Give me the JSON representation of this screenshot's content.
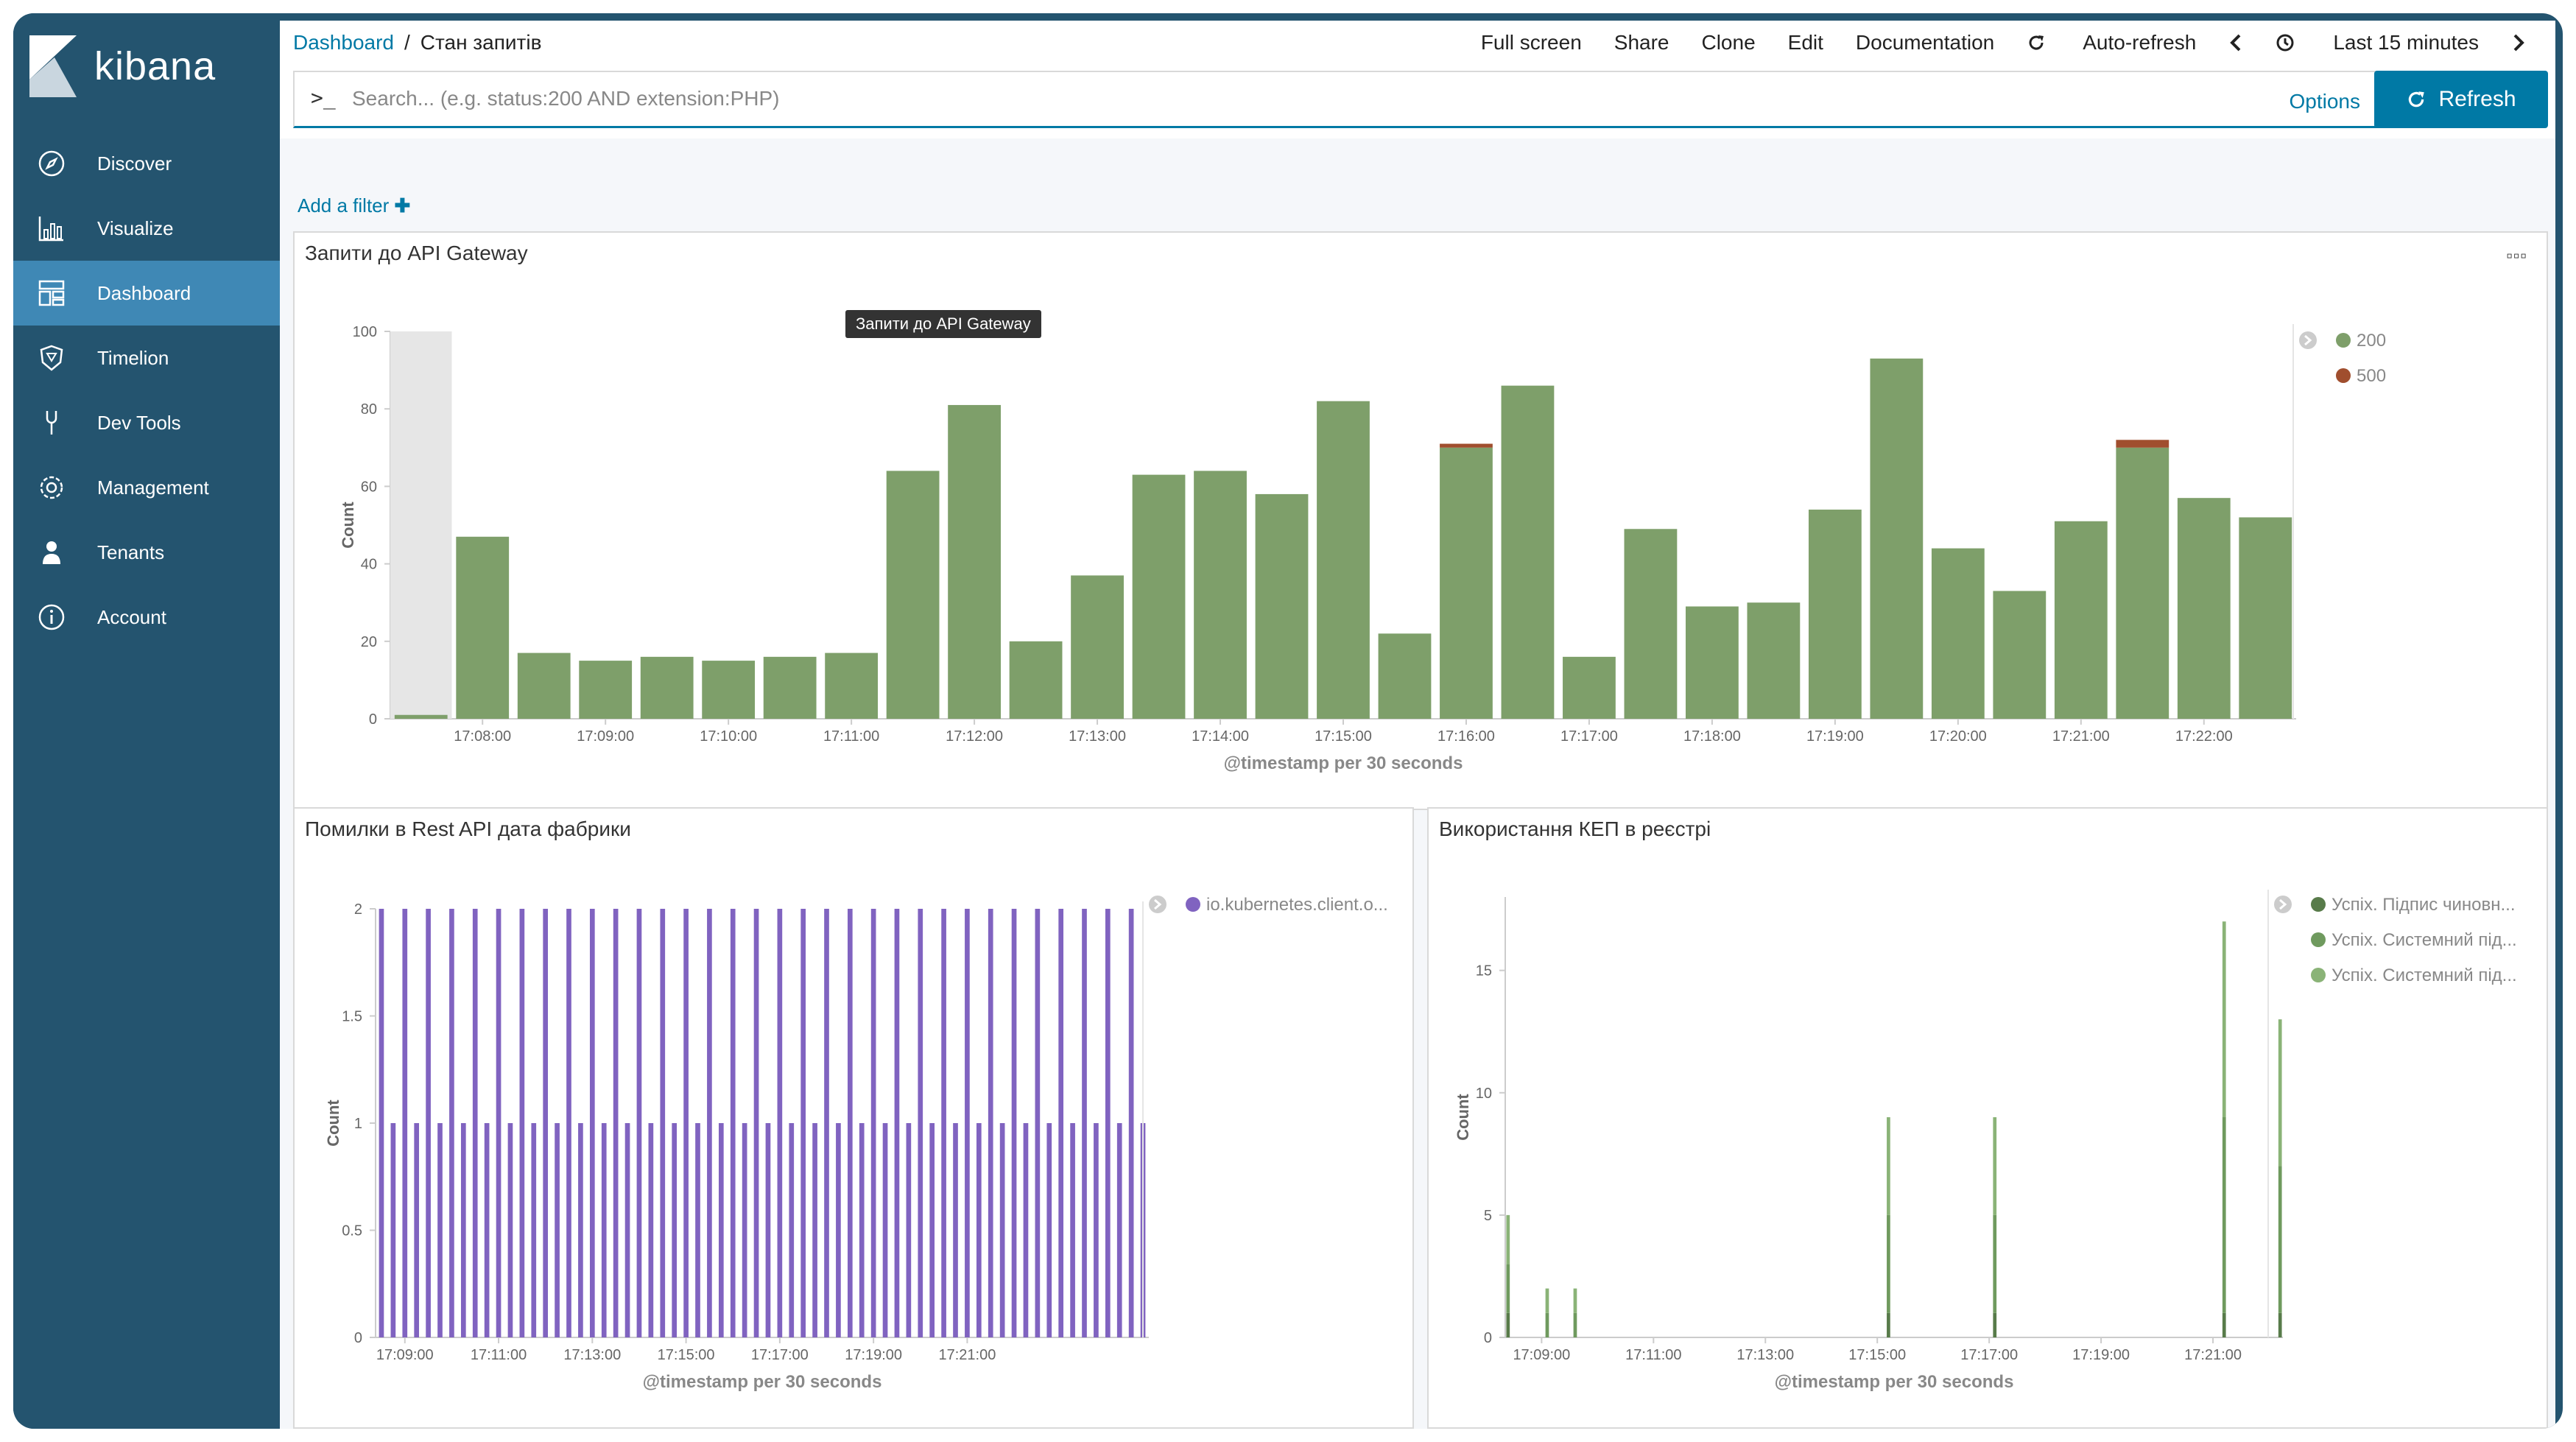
{
  "app": {
    "name": "kibana"
  },
  "nav": [
    {
      "label": "Discover",
      "icon": "compass-icon"
    },
    {
      "label": "Visualize",
      "icon": "bar-chart-icon"
    },
    {
      "label": "Dashboard",
      "icon": "dashboard-icon",
      "active": true
    },
    {
      "label": "Timelion",
      "icon": "shield-icon"
    },
    {
      "label": "Dev Tools",
      "icon": "wrench-icon"
    },
    {
      "label": "Management",
      "icon": "gear-icon"
    },
    {
      "label": "Tenants",
      "icon": "user-icon"
    },
    {
      "label": "Account",
      "icon": "info-icon"
    }
  ],
  "breadcrumb": {
    "root": "Dashboard",
    "separator": "/",
    "current": "Стан запитів"
  },
  "toolbar": {
    "full_screen": "Full screen",
    "share": "Share",
    "clone": "Clone",
    "edit": "Edit",
    "documentation": "Documentation",
    "auto_refresh": "Auto-refresh",
    "time_range": "Last 15 minutes"
  },
  "search": {
    "prompt": ">_",
    "placeholder": "Search... (e.g. status:200 AND extension:PHP)",
    "options": "Options"
  },
  "refresh_label": "Refresh",
  "filters": {
    "add": "Add a filter"
  },
  "colors": {
    "accent": "#0079a5",
    "sidebar": "#24546f",
    "active": "#3f88b5",
    "green": "#7e9f6a",
    "brown": "#a04e2e",
    "purple": "#8063c0"
  },
  "panels": {
    "p1": {
      "title": "Запити до API Gateway",
      "tooltip": "Запити до API Gateway",
      "xlabel": "@timestamp per 30 seconds",
      "ylabel": "Count",
      "legend": [
        "200",
        "500"
      ]
    },
    "p2": {
      "title": "Помилки в Rest API дата фабрики",
      "xlabel": "@timestamp per 30 seconds",
      "ylabel": "Count",
      "legend": [
        "io.kubernetes.client.o..."
      ]
    },
    "p3": {
      "title": "Використання КЕП в реєстрі",
      "xlabel": "@timestamp per 30 seconds",
      "ylabel": "Count",
      "legend": [
        "Успіх. Підпис чиновн...",
        "Успіх. Системний під...",
        "Успіх. Системний під..."
      ]
    }
  },
  "chart_data": [
    {
      "type": "bar",
      "title": "Запити до API Gateway",
      "xlabel": "@timestamp per 30 seconds",
      "ylabel": "Count",
      "ylim": [
        0,
        100
      ],
      "yticks": [
        0,
        20,
        40,
        60,
        80,
        100
      ],
      "xticks": [
        "17:08:00",
        "17:09:00",
        "17:10:00",
        "17:11:00",
        "17:12:00",
        "17:13:00",
        "17:14:00",
        "17:15:00",
        "17:16:00",
        "17:17:00",
        "17:18:00",
        "17:19:00",
        "17:20:00",
        "17:21:00",
        "17:22:00"
      ],
      "legend_position": "right",
      "series": [
        {
          "name": "200",
          "color": "#7e9f6a",
          "values": [
            1,
            47,
            17,
            15,
            16,
            15,
            16,
            17,
            64,
            81,
            20,
            37,
            63,
            64,
            58,
            82,
            22,
            70,
            86,
            16,
            49,
            29,
            30,
            54,
            93,
            44,
            33,
            51,
            70,
            57,
            52
          ]
        },
        {
          "name": "500",
          "color": "#a04e2e",
          "values": [
            0,
            0,
            0,
            0,
            0,
            0,
            0,
            0,
            0,
            0,
            0,
            0,
            0,
            0,
            0,
            0,
            0,
            1,
            0,
            0,
            0,
            0,
            0,
            0,
            0,
            0,
            0,
            0,
            2,
            0,
            0
          ]
        }
      ]
    },
    {
      "type": "bar",
      "title": "Помилки в Rest API дата фабрики",
      "xlabel": "@timestamp per 30 seconds",
      "ylabel": "Count",
      "ylim": [
        0,
        2
      ],
      "yticks": [
        0,
        0.5,
        1,
        1.5,
        2
      ],
      "xticks": [
        "17:09:00",
        "17:11:00",
        "17:13:00",
        "17:15:00",
        "17:17:00",
        "17:19:00",
        "17:21:00"
      ],
      "legend_position": "right",
      "series": [
        {
          "name": "io.kubernetes.client.o...",
          "color": "#8063c0",
          "values": [
            2,
            1,
            2,
            1,
            2,
            1,
            2,
            1,
            2,
            1,
            2,
            1,
            2,
            1,
            2,
            1,
            2,
            1,
            2,
            1,
            2,
            1,
            2,
            1,
            2,
            1,
            2,
            1,
            2,
            1,
            2,
            1,
            2,
            1,
            2,
            1,
            2,
            1,
            2,
            1,
            2,
            1,
            2,
            1,
            2,
            1,
            2,
            1,
            2,
            1,
            2,
            1,
            2,
            1,
            2,
            1,
            2,
            1,
            2,
            1,
            2,
            1,
            2,
            1,
            2,
            1
          ]
        }
      ]
    },
    {
      "type": "bar",
      "title": "Використання КЕП в реєстрі",
      "xlabel": "@timestamp per 30 seconds",
      "ylabel": "Count",
      "ylim": [
        0,
        18
      ],
      "yticks": [
        0,
        5,
        10,
        15
      ],
      "xticks": [
        "17:09:00",
        "17:11:00",
        "17:13:00",
        "17:15:00",
        "17:17:00",
        "17:19:00",
        "17:21:00"
      ],
      "legend_position": "right",
      "stacked": true,
      "series": [
        {
          "name": "Успіх. Підпис чиновн...",
          "color": "#587b4a",
          "values": [
            1,
            0,
            0,
            0,
            0,
            0,
            0,
            0,
            0,
            0,
            0,
            0,
            0,
            0,
            0,
            0,
            0,
            0,
            0,
            0,
            0,
            0,
            0,
            0,
            0,
            0,
            0,
            0,
            0,
            0,
            0,
            0,
            0,
            0,
            0,
            0,
            0,
            0,
            0,
            0,
            0,
            0,
            0,
            0,
            0,
            0,
            0,
            0,
            0,
            0,
            0,
            0,
            0,
            0,
            0,
            0,
            0,
            0,
            0,
            0,
            0,
            0,
            0,
            0,
            0,
            0,
            0,
            0,
            1,
            0,
            0,
            0,
            0,
            0,
            0,
            0,
            0,
            0,
            0,
            0,
            0,
            0,
            0,
            0,
            0,
            0,
            0,
            1,
            0,
            0,
            0,
            0,
            0,
            0,
            0,
            0,
            0,
            0,
            0,
            0,
            0,
            0,
            0,
            0,
            0,
            0,
            0,
            0,
            0,
            0,
            0,
            0,
            0,
            0,
            0,
            0,
            0,
            0,
            0,
            0,
            0,
            0,
            0,
            0,
            0,
            0,
            0,
            0,
            1,
            0,
            0,
            0,
            0,
            0,
            0,
            0,
            0,
            0,
            1
          ]
        },
        {
          "name": "Успіх. Системний під...",
          "color": "#6f9a5e",
          "values": [
            2,
            0,
            0,
            0,
            0,
            0,
            0,
            1,
            0,
            0,
            0,
            0,
            1,
            0,
            0,
            0,
            0,
            0,
            0,
            0,
            0,
            0,
            0,
            0,
            0,
            0,
            0,
            0,
            0,
            0,
            0,
            0,
            0,
            0,
            0,
            0,
            0,
            0,
            0,
            0,
            0,
            0,
            0,
            0,
            0,
            0,
            0,
            0,
            0,
            0,
            0,
            0,
            0,
            0,
            0,
            0,
            0,
            0,
            0,
            0,
            0,
            0,
            0,
            0,
            0,
            0,
            0,
            0,
            4,
            0,
            0,
            0,
            0,
            0,
            0,
            0,
            0,
            0,
            0,
            0,
            0,
            0,
            0,
            0,
            0,
            0,
            0,
            4,
            0,
            0,
            0,
            0,
            0,
            0,
            0,
            0,
            0,
            0,
            0,
            0,
            0,
            0,
            0,
            0,
            0,
            0,
            0,
            0,
            0,
            0,
            0,
            0,
            0,
            0,
            0,
            0,
            0,
            0,
            0,
            0,
            0,
            0,
            0,
            0,
            0,
            0,
            0,
            0,
            8,
            0,
            0,
            0,
            0,
            0,
            0,
            0,
            0,
            0,
            6
          ]
        },
        {
          "name": "Успіх. Системний під...",
          "color": "#8ab377",
          "values": [
            2,
            0,
            0,
            0,
            0,
            0,
            0,
            1,
            0,
            0,
            0,
            0,
            1,
            0,
            0,
            0,
            0,
            0,
            0,
            0,
            0,
            0,
            0,
            0,
            0,
            0,
            0,
            0,
            0,
            0,
            0,
            0,
            0,
            0,
            0,
            0,
            0,
            0,
            0,
            0,
            0,
            0,
            0,
            0,
            0,
            0,
            0,
            0,
            0,
            0,
            0,
            0,
            0,
            0,
            0,
            0,
            0,
            0,
            0,
            0,
            0,
            0,
            0,
            0,
            0,
            0,
            0,
            0,
            4,
            0,
            0,
            0,
            0,
            0,
            0,
            0,
            0,
            0,
            0,
            0,
            0,
            0,
            0,
            0,
            0,
            0,
            0,
            4,
            0,
            0,
            0,
            0,
            0,
            0,
            0,
            0,
            0,
            0,
            0,
            0,
            0,
            0,
            0,
            0,
            0,
            0,
            0,
            0,
            0,
            0,
            0,
            0,
            0,
            0,
            0,
            0,
            0,
            0,
            0,
            0,
            0,
            0,
            0,
            0,
            0,
            0,
            0,
            0,
            8,
            0,
            0,
            0,
            0,
            0,
            0,
            0,
            0,
            0,
            6
          ]
        }
      ]
    }
  ]
}
